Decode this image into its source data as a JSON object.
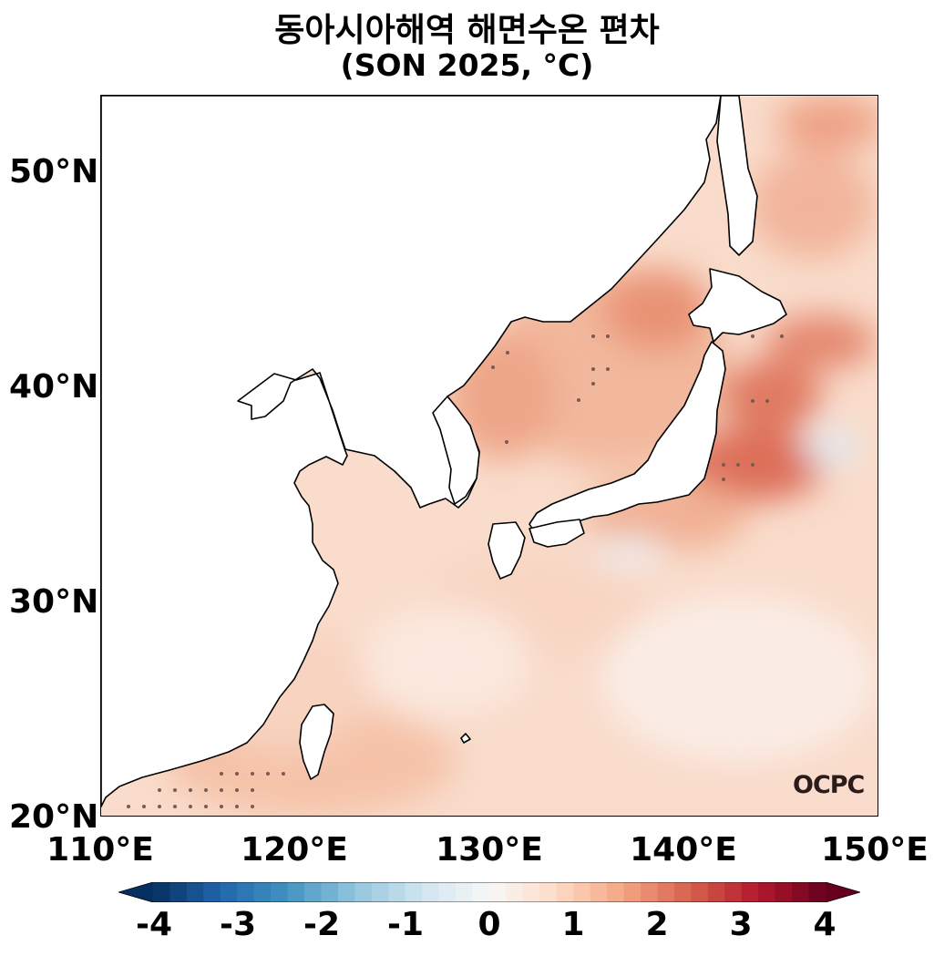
{
  "map": {
    "title_line1": "동아시아해역 해면수온 편차",
    "title_line2": "(SON 2025, °C)",
    "lat_labels": [
      "50°N",
      "40°N",
      "30°N",
      "20°N"
    ],
    "lon_labels": [
      "110°E",
      "120°E",
      "130°E",
      "140°E",
      "150°E"
    ],
    "extent": {
      "lon": [
        110,
        150
      ],
      "lat": [
        20,
        53.5
      ]
    },
    "colorbar": {
      "ticks": [
        "-4",
        "-3",
        "-2",
        "-1",
        "0",
        "1",
        "2",
        "3",
        "4"
      ],
      "range": [
        -4,
        4
      ],
      "colormap": "RdBu_r",
      "extend": "both"
    },
    "logo": "OCPC",
    "colors": {
      "ocean_base": "#f9dccb",
      "warm_strong": "#d6604d",
      "cool": "#e0ecf4",
      "land": "#ffffff",
      "coastline": "#000000",
      "stipple": "#7a5a52"
    },
    "note_stippling": "significance dots"
  }
}
